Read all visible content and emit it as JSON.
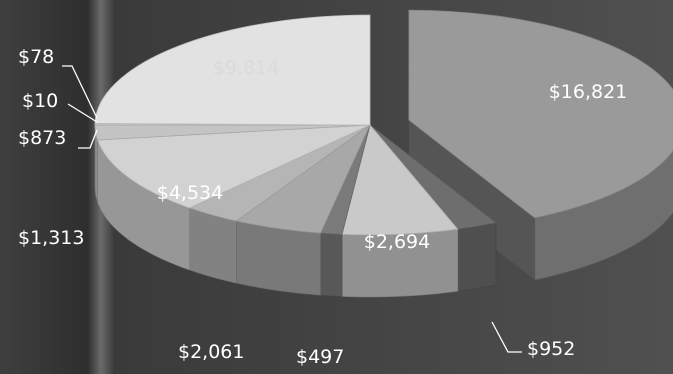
{
  "chart_data": {
    "type": "pie",
    "style": "3d-exploded",
    "title": "",
    "slices": [
      {
        "label": "$16,821",
        "value": 16821,
        "color": "#9a9a9a",
        "exploded": true
      },
      {
        "label": "$952",
        "value": 952,
        "color": "#6e6e6e",
        "exploded": false
      },
      {
        "label": "$2,694",
        "value": 2694,
        "color": "#c9c9c9",
        "exploded": false
      },
      {
        "label": "$497",
        "value": 497,
        "color": "#7a7a7a",
        "exploded": false
      },
      {
        "label": "$2,061",
        "value": 2061,
        "color": "#a8a8a8",
        "exploded": false
      },
      {
        "label": "$1,313",
        "value": 1313,
        "color": "#b5b5b5",
        "exploded": false
      },
      {
        "label": "$4,534",
        "value": 4534,
        "color": "#d2d2d2",
        "exploded": false
      },
      {
        "label": "$873",
        "value": 873,
        "color": "#c4c4c4",
        "exploded": false
      },
      {
        "label": "$10",
        "value": 10,
        "color": "#bdbdbd",
        "exploded": false
      },
      {
        "label": "$78",
        "value": 78,
        "color": "#cfcfcf",
        "exploded": false
      },
      {
        "label": "$9,814",
        "value": 9814,
        "color": "#e2e2e2",
        "exploded": false
      }
    ],
    "background_color": "#4a4a4a",
    "legend": "none"
  }
}
